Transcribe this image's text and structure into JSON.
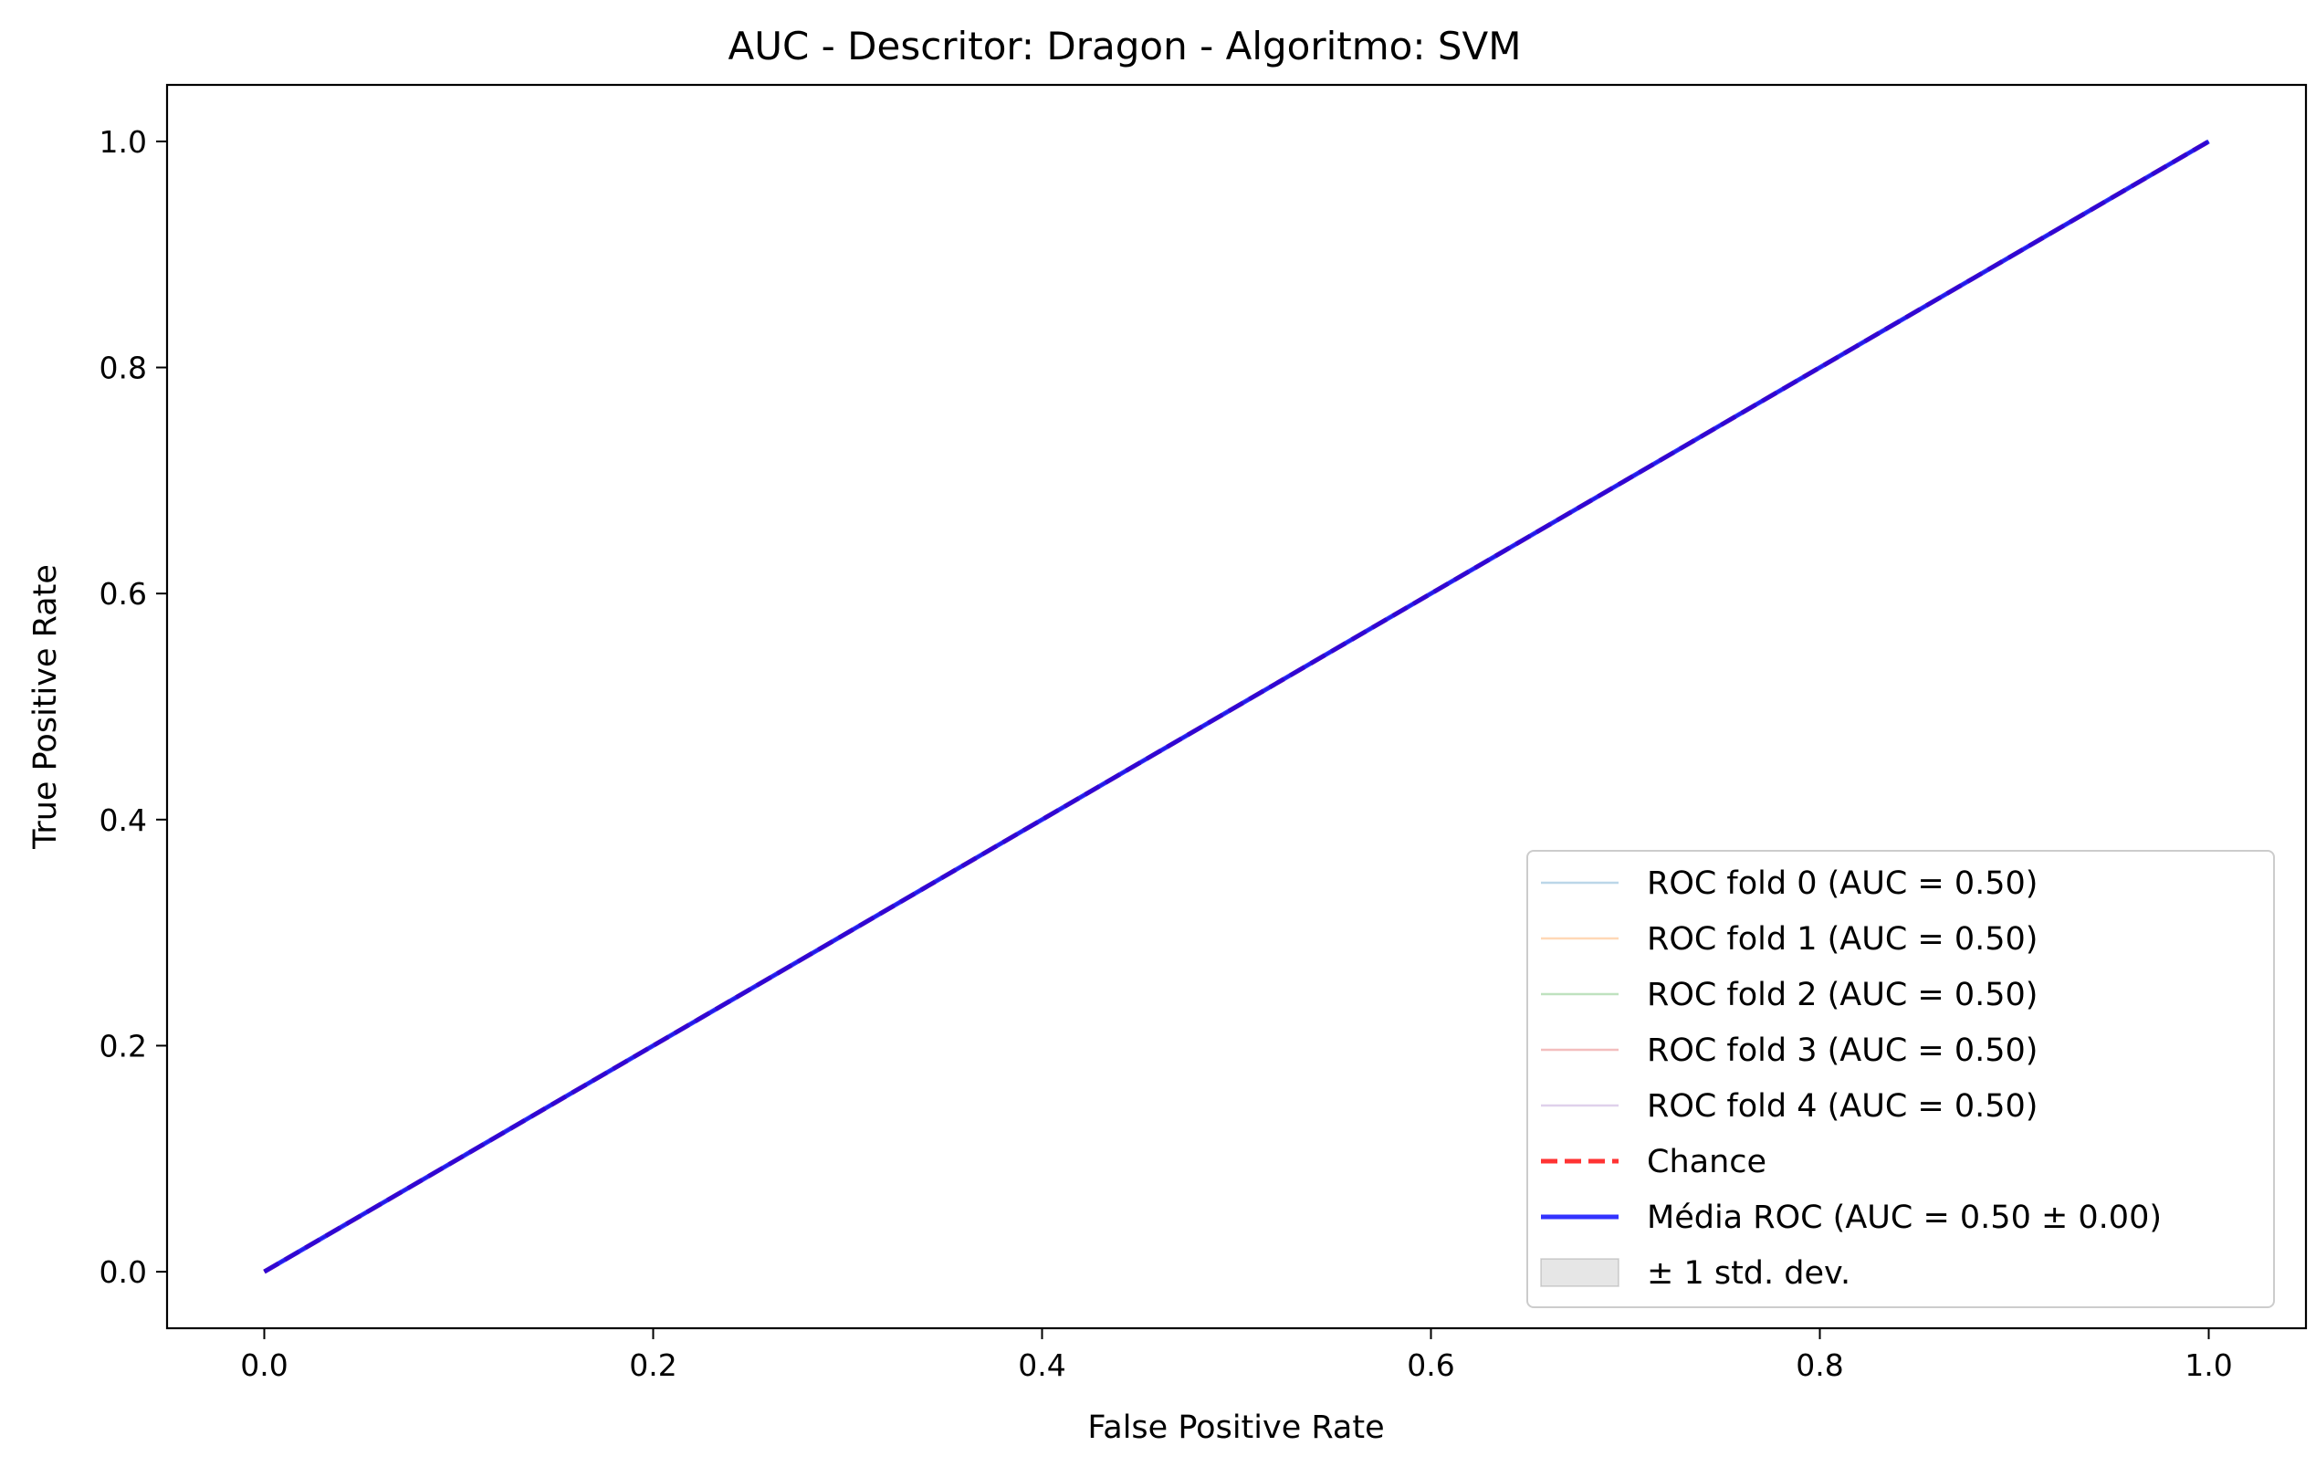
{
  "chart_data": {
    "type": "line",
    "title": "AUC - Descritor: Dragon - Algoritmo: SVM",
    "xlabel": "False Positive Rate",
    "ylabel": "True Positive Rate",
    "xlim": [
      -0.05,
      1.05
    ],
    "ylim": [
      -0.05,
      1.05
    ],
    "xticks": [
      0.0,
      0.2,
      0.4,
      0.6,
      0.8,
      1.0
    ],
    "yticks": [
      0.0,
      0.2,
      0.4,
      0.6,
      0.8,
      1.0
    ],
    "xtick_labels": [
      "0.0",
      "0.2",
      "0.4",
      "0.6",
      "0.8",
      "1.0"
    ],
    "ytick_labels": [
      "0.0",
      "0.2",
      "0.4",
      "0.6",
      "0.8",
      "1.0"
    ],
    "grid": false,
    "legend_position": "lower-right",
    "series": [
      {
        "name": "ROC fold 0 (AUC = 0.50)",
        "x": [
          0,
          1
        ],
        "y": [
          0,
          1
        ],
        "color": "#1f77b4",
        "opacity": 0.3,
        "style": "solid",
        "kind": "line"
      },
      {
        "name": "ROC fold 1 (AUC = 0.50)",
        "x": [
          0,
          1
        ],
        "y": [
          0,
          1
        ],
        "color": "#ff7f0e",
        "opacity": 0.3,
        "style": "solid",
        "kind": "line"
      },
      {
        "name": "ROC fold 2 (AUC = 0.50)",
        "x": [
          0,
          1
        ],
        "y": [
          0,
          1
        ],
        "color": "#2ca02c",
        "opacity": 0.3,
        "style": "solid",
        "kind": "line"
      },
      {
        "name": "ROC fold 3 (AUC = 0.50)",
        "x": [
          0,
          1
        ],
        "y": [
          0,
          1
        ],
        "color": "#d62728",
        "opacity": 0.3,
        "style": "solid",
        "kind": "line"
      },
      {
        "name": "ROC fold 4 (AUC = 0.50)",
        "x": [
          0,
          1
        ],
        "y": [
          0,
          1
        ],
        "color": "#9467bd",
        "opacity": 0.3,
        "style": "solid",
        "kind": "line"
      },
      {
        "name": "Chance",
        "x": [
          0,
          1
        ],
        "y": [
          0,
          1
        ],
        "color": "#ff0000",
        "opacity": 0.8,
        "style": "dashed",
        "kind": "line"
      },
      {
        "name": "Média ROC (AUC = 0.50 ± 0.00)",
        "x": [
          0,
          1
        ],
        "y": [
          0,
          1
        ],
        "color": "#0000ff",
        "opacity": 0.8,
        "style": "solid",
        "kind": "line"
      },
      {
        "name": "± 1 std. dev.",
        "x": [
          0,
          1
        ],
        "y_lower": [
          0,
          1
        ],
        "y_upper": [
          0,
          1
        ],
        "color": "#808080",
        "opacity": 0.2,
        "kind": "band"
      }
    ]
  }
}
